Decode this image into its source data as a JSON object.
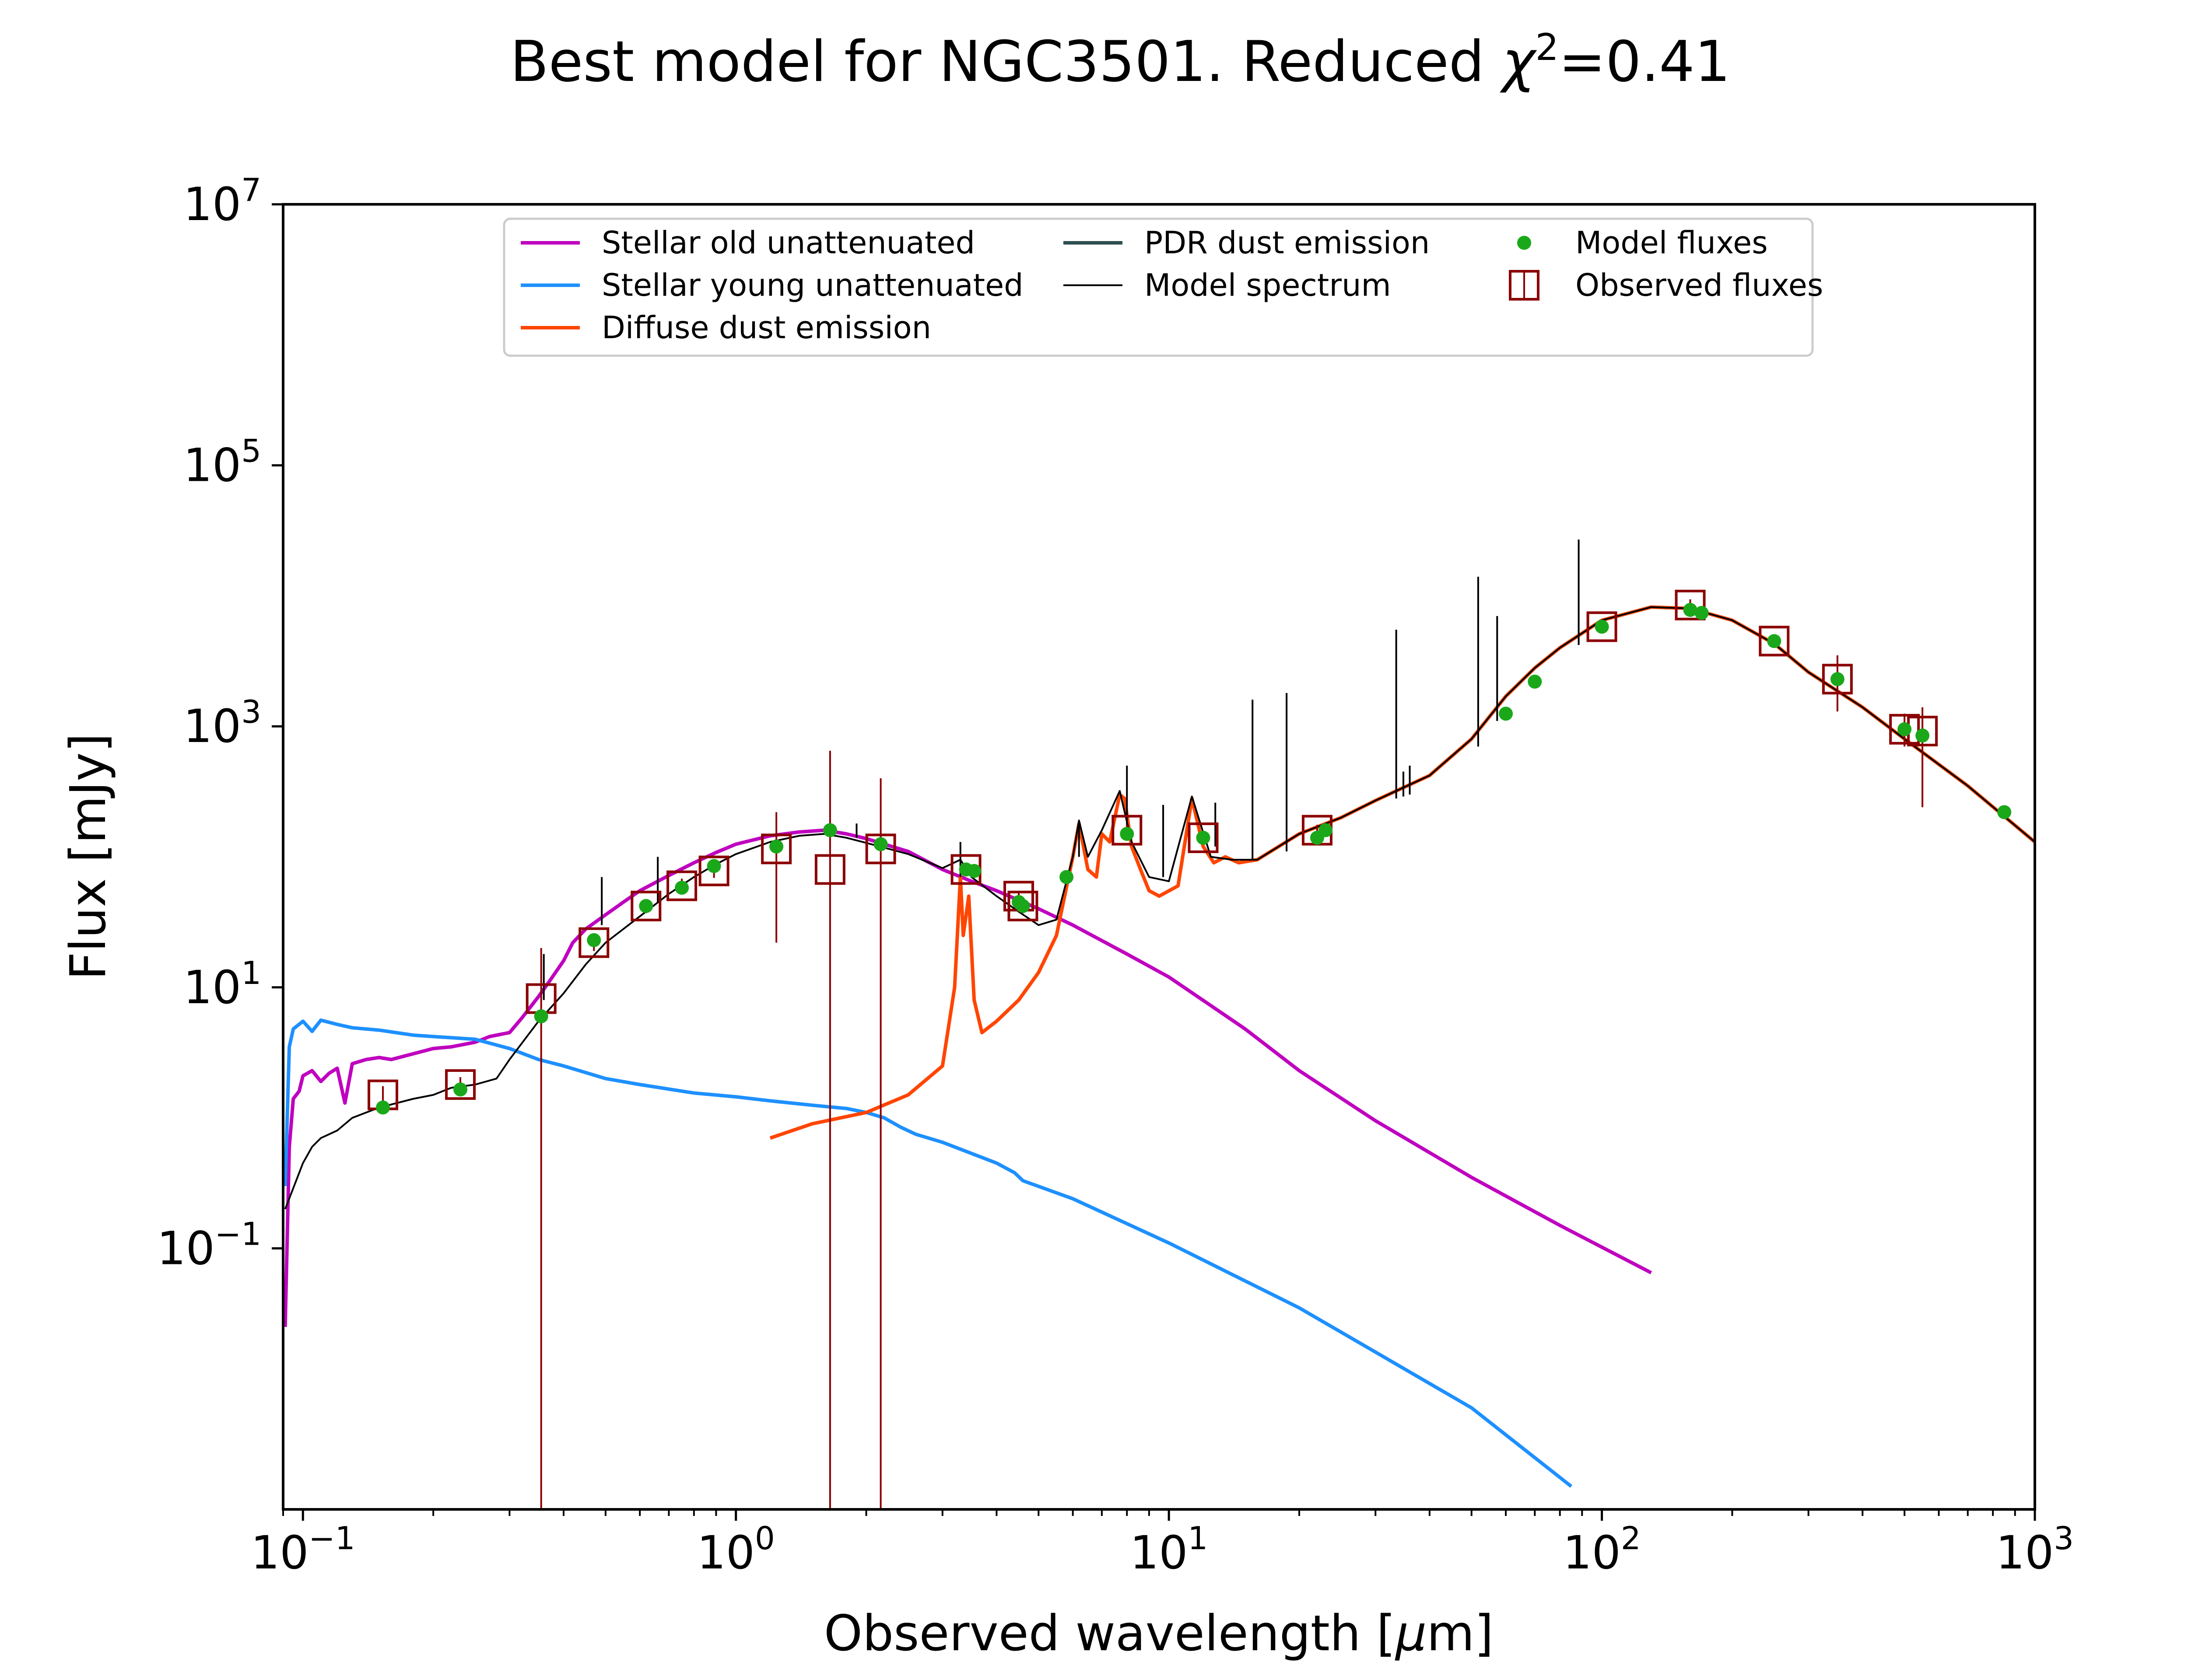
{
  "chart_data": {
    "type": "line",
    "title": {
      "prefix": "Best model for NGC3501. Reduced ",
      "symbol": "χ",
      "sup": "2",
      "suffix": "=0.41"
    },
    "xlabel": {
      "prefix": "Observed wavelength [",
      "symbol": "μ",
      "suffix": "m]"
    },
    "ylabel": "Flux [mJy]",
    "x_scale": "log",
    "y_scale": "log",
    "xlim": [
      0.09,
      1000
    ],
    "ylim": [
      0.001,
      10000000
    ],
    "x_ticks": [
      {
        "value": 0.1,
        "base": "10",
        "exp": "−1"
      },
      {
        "value": 1,
        "base": "10",
        "exp": "0"
      },
      {
        "value": 10,
        "base": "10",
        "exp": "1"
      },
      {
        "value": 100,
        "base": "10",
        "exp": "2"
      },
      {
        "value": 1000,
        "base": "10",
        "exp": "3"
      }
    ],
    "y_ticks": [
      {
        "value": 0.1,
        "base": "10",
        "exp": "−1"
      },
      {
        "value": 10,
        "base": "10",
        "exp": "1"
      },
      {
        "value": 1000,
        "base": "10",
        "exp": "3"
      },
      {
        "value": 100000,
        "base": "10",
        "exp": "5"
      },
      {
        "value": 10000000,
        "base": "10",
        "exp": "7"
      }
    ],
    "grid": false,
    "legend_position": "top-center",
    "legend": [
      {
        "label": "Stellar old unattenuated",
        "marker": "line",
        "color": "#bf00bf"
      },
      {
        "label": "Stellar young unattenuated",
        "marker": "line",
        "color": "#1e90ff"
      },
      {
        "label": "Diffuse dust emission",
        "marker": "line",
        "color": "#ff4500"
      },
      {
        "label": "PDR dust emission",
        "marker": "line",
        "color": "#2f4f4f"
      },
      {
        "label": "Model spectrum",
        "marker": "thin-line",
        "color": "#000000"
      },
      {
        "label": "Model fluxes",
        "marker": "dot",
        "color": "#1aa81a"
      },
      {
        "label": "Observed fluxes",
        "marker": "square-errorbar",
        "color": "#8b0000"
      }
    ],
    "series": [
      {
        "name": "Stellar old unattenuated",
        "color": "#bf00bf",
        "x": [
          0.091,
          0.093,
          0.095,
          0.098,
          0.1,
          0.105,
          0.11,
          0.115,
          0.12,
          0.125,
          0.13,
          0.14,
          0.15,
          0.16,
          0.18,
          0.2,
          0.22,
          0.25,
          0.27,
          0.3,
          0.32,
          0.35,
          0.37,
          0.4,
          0.42,
          0.45,
          0.5,
          0.55,
          0.6,
          0.7,
          0.8,
          0.9,
          1.0,
          1.2,
          1.4,
          1.6,
          1.8,
          2.0,
          2.2,
          2.5,
          3.0,
          3.5,
          4.0,
          5.0,
          6.0,
          8.0,
          10.0,
          15.0,
          20.0,
          30.0,
          50.0,
          80.0,
          130.0
        ],
        "y": [
          0.025,
          0.6,
          1.4,
          1.6,
          2.1,
          2.3,
          1.9,
          2.2,
          2.4,
          1.3,
          2.6,
          2.8,
          2.9,
          2.8,
          3.1,
          3.4,
          3.5,
          3.8,
          4.2,
          4.5,
          5.8,
          8.5,
          11,
          16,
          22,
          28,
          36,
          45,
          55,
          72,
          90,
          108,
          125,
          145,
          155,
          160,
          150,
          138,
          125,
          110,
          80,
          65,
          55,
          40,
          30,
          18,
          12,
          4.8,
          2.3,
          0.95,
          0.35,
          0.15,
          0.065
        ]
      },
      {
        "name": "Stellar young unattenuated",
        "color": "#1e90ff",
        "x": [
          0.091,
          0.093,
          0.095,
          0.1,
          0.105,
          0.11,
          0.12,
          0.13,
          0.15,
          0.18,
          0.2,
          0.25,
          0.3,
          0.35,
          0.4,
          0.5,
          0.6,
          0.8,
          1.0,
          1.2,
          1.5,
          1.8,
          2.0,
          2.2,
          2.4,
          2.6,
          3.0,
          4.0,
          4.4,
          4.6,
          6.0,
          10.0,
          20.0,
          50.0,
          85.0
        ],
        "y": [
          0.3,
          3.5,
          4.8,
          5.5,
          4.6,
          5.6,
          5.2,
          4.9,
          4.7,
          4.3,
          4.2,
          4.0,
          3.4,
          2.8,
          2.5,
          2.0,
          1.8,
          1.55,
          1.45,
          1.35,
          1.25,
          1.18,
          1.1,
          1.0,
          0.85,
          0.75,
          0.65,
          0.45,
          0.38,
          0.33,
          0.24,
          0.11,
          0.035,
          0.006,
          0.0015
        ]
      },
      {
        "name": "Diffuse dust emission",
        "color": "#ff4500",
        "x": [
          1.2,
          1.5,
          2.0,
          2.5,
          3.0,
          3.2,
          3.3,
          3.35,
          3.45,
          3.55,
          3.7,
          4.0,
          4.5,
          5.0,
          5.5,
          6.0,
          6.2,
          6.5,
          6.8,
          7.0,
          7.3,
          7.7,
          7.9,
          8.2,
          8.6,
          9.0,
          9.5,
          10.5,
          11.3,
          12.0,
          12.7,
          13.5,
          14.5,
          16.0,
          20.0,
          25.0,
          30.0,
          40.0,
          50.0,
          60.0,
          70.0,
          80.0,
          100.0,
          130.0,
          160.0,
          200.0,
          250.0,
          300.0,
          400.0,
          500.0,
          700.0,
          1000.0
        ],
        "y": [
          0.7,
          0.9,
          1.1,
          1.5,
          2.5,
          10,
          70,
          25,
          50,
          8,
          4.5,
          5.5,
          8,
          13,
          25,
          100,
          180,
          80,
          70,
          150,
          130,
          300,
          280,
          120,
          80,
          55,
          50,
          60,
          280,
          120,
          90,
          100,
          90,
          95,
          150,
          200,
          270,
          420,
          800,
          1700,
          2800,
          4000,
          6500,
          8200,
          8000,
          6500,
          4300,
          2600,
          1400,
          800,
          350,
          130
        ]
      },
      {
        "name": "Model spectrum",
        "color": "#000000",
        "x": [
          0.091,
          0.1,
          0.105,
          0.11,
          0.12,
          0.13,
          0.15,
          0.18,
          0.2,
          0.22,
          0.25,
          0.28,
          0.3,
          0.35,
          0.4,
          0.45,
          0.5,
          0.6,
          0.7,
          0.8,
          0.9,
          1.0,
          1.2,
          1.4,
          1.6,
          1.8,
          2.0,
          2.5,
          3.0,
          3.3,
          3.5,
          4.0,
          4.5,
          5.0,
          5.5,
          6.0,
          6.2,
          6.5,
          7.0,
          7.7,
          8.2,
          9.0,
          10.0,
          11.3,
          12.5,
          14.0,
          16.0,
          20.0,
          25.0,
          30.0,
          40.0,
          50.0,
          60.0,
          70.0,
          80.0,
          100.0,
          130.0,
          160.0,
          200.0,
          250.0,
          300.0,
          400.0,
          500.0,
          700.0,
          1000.0
        ],
        "y": [
          0.2,
          0.45,
          0.6,
          0.7,
          0.8,
          1.0,
          1.2,
          1.4,
          1.5,
          1.7,
          1.8,
          2.0,
          2.8,
          5.5,
          9,
          15,
          22,
          35,
          52,
          70,
          88,
          105,
          130,
          145,
          150,
          140,
          128,
          105,
          82,
          95,
          70,
          50,
          38,
          30,
          33,
          100,
          190,
          100,
          160,
          320,
          130,
          70,
          65,
          290,
          100,
          95,
          95,
          150,
          200,
          270,
          420,
          800,
          1700,
          2800,
          4000,
          6500,
          8200,
          8000,
          6500,
          4300,
          2600,
          1400,
          800,
          350,
          130
        ]
      }
    ],
    "spectral_lines": [
      {
        "x": 0.36,
        "y_low": 8,
        "y_high": 18
      },
      {
        "x": 0.49,
        "y_low": 30,
        "y_high": 70
      },
      {
        "x": 0.66,
        "y_low": 45,
        "y_high": 100
      },
      {
        "x": 1.9,
        "y_low": 140,
        "y_high": 180
      },
      {
        "x": 3.3,
        "y_low": 70,
        "y_high": 130
      },
      {
        "x": 6.2,
        "y_low": 100,
        "y_high": 180
      },
      {
        "x": 8.0,
        "y_low": 160,
        "y_high": 500
      },
      {
        "x": 9.7,
        "y_low": 70,
        "y_high": 250
      },
      {
        "x": 12.8,
        "y_low": 120,
        "y_high": 260
      },
      {
        "x": 15.6,
        "y_low": 95,
        "y_high": 1600
      },
      {
        "x": 18.7,
        "y_low": 110,
        "y_high": 1800
      },
      {
        "x": 33.5,
        "y_low": 280,
        "y_high": 5500
      },
      {
        "x": 34.8,
        "y_low": 290,
        "y_high": 450
      },
      {
        "x": 36.0,
        "y_low": 300,
        "y_high": 500
      },
      {
        "x": 51.8,
        "y_low": 700,
        "y_high": 14000
      },
      {
        "x": 57.3,
        "y_low": 1100,
        "y_high": 7000
      },
      {
        "x": 88.4,
        "y_low": 4200,
        "y_high": 27000
      }
    ],
    "model_fluxes": {
      "color": "#1aa81a",
      "x": [
        0.153,
        0.231,
        0.355,
        0.47,
        0.62,
        0.75,
        0.89,
        1.24,
        1.65,
        2.16,
        3.4,
        3.55,
        4.5,
        4.6,
        5.8,
        8.0,
        12.0,
        22.0,
        23.0,
        60.0,
        70.0,
        100.0,
        160.0,
        170.0,
        250.0,
        350.0,
        500.0,
        550.0,
        850.0
      ],
      "y": [
        1.2,
        1.65,
        6.0,
        23,
        42,
        58,
        85,
        120,
        160,
        125,
        80,
        78,
        45,
        42,
        70,
        150,
        140,
        140,
        160,
        1250,
        2200,
        5800,
        7800,
        7400,
        4500,
        2300,
        950,
        850,
        220
      ]
    },
    "observed_fluxes": {
      "color": "#8b0000",
      "points": [
        {
          "x": 0.153,
          "y": 1.5,
          "err_low": 1.2,
          "err_high": 1.75
        },
        {
          "x": 0.231,
          "y": 1.8,
          "err_low": 1.55,
          "err_high": 2.05
        },
        {
          "x": 0.355,
          "y": 8.2,
          "err_low": 0.001,
          "err_high": 20
        },
        {
          "x": 0.47,
          "y": 22,
          "err_low": 19,
          "err_high": 26
        },
        {
          "x": 0.62,
          "y": 42,
          "err_low": 37,
          "err_high": 47
        },
        {
          "x": 0.75,
          "y": 60,
          "err_low": 53,
          "err_high": 68
        },
        {
          "x": 0.89,
          "y": 78,
          "err_low": 69,
          "err_high": 88
        },
        {
          "x": 1.24,
          "y": 115,
          "err_low": 22,
          "err_high": 220
        },
        {
          "x": 1.65,
          "y": 80,
          "err_low": 0.001,
          "err_high": 650
        },
        {
          "x": 2.16,
          "y": 115,
          "err_low": 0.001,
          "err_high": 400
        },
        {
          "x": 3.4,
          "y": 80,
          "err_low": 72,
          "err_high": 88
        },
        {
          "x": 4.5,
          "y": 50,
          "err_low": 45,
          "err_high": 55
        },
        {
          "x": 4.6,
          "y": 42,
          "err_low": 37,
          "err_high": 47
        },
        {
          "x": 8.0,
          "y": 160,
          "err_low": 145,
          "err_high": 176
        },
        {
          "x": 12.0,
          "y": 140,
          "err_low": 126,
          "err_high": 154
        },
        {
          "x": 22.0,
          "y": 160,
          "err_low": 144,
          "err_high": 176
        },
        {
          "x": 100.0,
          "y": 5800,
          "err_low": 5200,
          "err_high": 6400
        },
        {
          "x": 160.0,
          "y": 8500,
          "err_low": 7600,
          "err_high": 9400
        },
        {
          "x": 250.0,
          "y": 4500,
          "err_low": 4050,
          "err_high": 4950
        },
        {
          "x": 350.0,
          "y": 2300,
          "err_low": 1300,
          "err_high": 3500
        },
        {
          "x": 500.0,
          "y": 950,
          "err_low": 700,
          "err_high": 1250
        },
        {
          "x": 550.0,
          "y": 920,
          "err_low": 240,
          "err_high": 1400
        }
      ]
    }
  }
}
